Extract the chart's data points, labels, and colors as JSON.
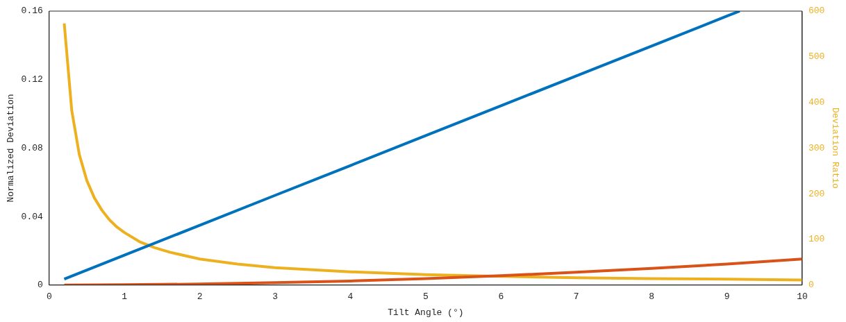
{
  "chart_data": {
    "type": "line",
    "xlabel": "Tilt Angle (°)",
    "ylabel": "Normalized Deviation",
    "y2label": "Deviation Ratio",
    "xlim": [
      0,
      10
    ],
    "xticks": [
      0,
      1,
      2,
      3,
      4,
      5,
      6,
      7,
      8,
      9,
      10
    ],
    "ylim": [
      0,
      0.16
    ],
    "yticks": [
      0,
      0.04,
      0.08,
      0.12,
      0.16
    ],
    "y2lim": [
      0,
      600
    ],
    "y2ticks": [
      0,
      100,
      200,
      300,
      400,
      500,
      600
    ],
    "grid": false,
    "legend": false,
    "marker": "none",
    "line_style": "solid",
    "series": [
      {
        "color": "#0072bd",
        "x": [
          0.2,
          1,
          2,
          3,
          4,
          5,
          6,
          7,
          8,
          9,
          9.17
        ],
        "values": [
          0.0035,
          0.0175,
          0.0349,
          0.0524,
          0.0698,
          0.0873,
          0.1047,
          0.1222,
          0.1396,
          0.1571,
          0.16
        ]
      },
      {
        "color": "#d95319",
        "x": [
          0.2,
          1,
          2,
          3,
          4,
          5,
          6,
          7,
          8,
          9,
          10
        ],
        "values": [
          0,
          0.0002,
          0.0006,
          0.0014,
          0.0024,
          0.0038,
          0.0055,
          0.0075,
          0.0097,
          0.0123,
          0.0152
        ]
      },
      {
        "color": "#edb120",
        "axis": "y2",
        "x": [
          0.2,
          0.3,
          0.4,
          0.5,
          0.6,
          0.7,
          0.8,
          0.9,
          1,
          1.2,
          1.4,
          1.6,
          2,
          2.5,
          3,
          4,
          5,
          6,
          7,
          8,
          9,
          10
        ],
        "values": [
          573,
          382,
          286,
          229,
          191,
          164,
          143,
          127,
          115,
          95,
          82,
          72,
          57,
          46,
          38,
          29,
          23,
          19,
          16,
          14,
          13,
          11
        ]
      }
    ]
  }
}
